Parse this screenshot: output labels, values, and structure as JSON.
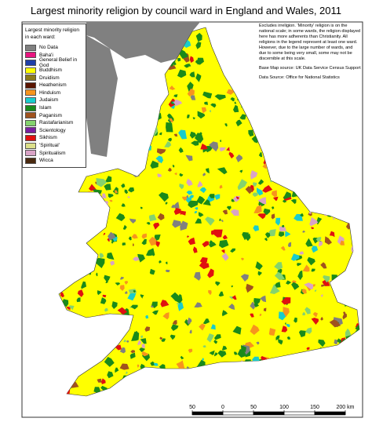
{
  "title": "Largest minority religion by council ward in England and Wales, 2011",
  "legend": {
    "title": "Largest minority religion in each ward:",
    "items": [
      {
        "label": "No Data",
        "color": "#808080"
      },
      {
        "label": "Baha'i",
        "color": "#e8157f"
      },
      {
        "label": "General Belief in God",
        "color": "#1f3fa8"
      },
      {
        "label": "Buddhism",
        "color": "#ffff00"
      },
      {
        "label": "Druidism",
        "color": "#8c7a1a"
      },
      {
        "label": "Heathenism",
        "color": "#5a1400"
      },
      {
        "label": "Hinduism",
        "color": "#f7941d"
      },
      {
        "label": "Judaism",
        "color": "#19cccc"
      },
      {
        "label": "Islam",
        "color": "#1a8a1a"
      },
      {
        "label": "Paganism",
        "color": "#a0521e"
      },
      {
        "label": "Rastafarianism",
        "color": "#84d36e"
      },
      {
        "label": "Scientology",
        "color": "#7a1fa0"
      },
      {
        "label": "Sikhism",
        "color": "#e01010"
      },
      {
        "label": "'Spiritual'",
        "color": "#dce08a"
      },
      {
        "label": "Spiritualism",
        "color": "#d9a3c6"
      },
      {
        "label": "Wicca",
        "color": "#4a2a10"
      }
    ]
  },
  "notes": {
    "text": "Excludes irreligion. 'Minority' religion is on the national scale; in some wards, the religion displayed here has more adherents than Christianity. All religions in the legend represent at least one ward. However, due to the large number of wards, and due to some being very small, some may not be discernible at this scale.",
    "base_map_source": "Base Map source: UK Data Service Census Support",
    "data_source": "Data Source: Office for National Statistics"
  },
  "scale_bar": {
    "ticks": [
      {
        "value": -50,
        "label": "50"
      },
      0,
      50,
      100,
      150,
      {
        "value": 200,
        "label": "200 km"
      }
    ]
  }
}
